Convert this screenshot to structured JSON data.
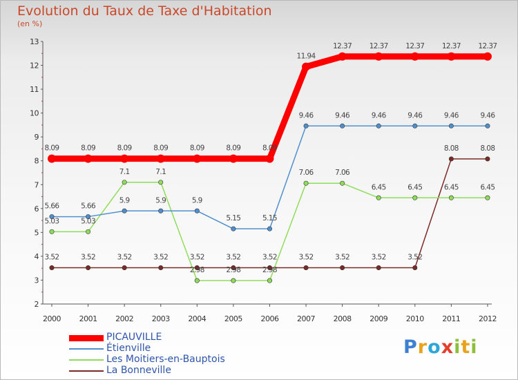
{
  "title": "Evolution du Taux de Taxe d'Habitation",
  "subtitle": "(en %)",
  "logo": {
    "letters": [
      {
        "ch": "P",
        "color": "#3d7fd1"
      },
      {
        "ch": "r",
        "color": "#e8a21b"
      },
      {
        "ch": "o",
        "color": "#2ea6d8"
      },
      {
        "ch": "x",
        "color": "#e23f2c"
      },
      {
        "ch": "i",
        "color": "#8dbf3a"
      },
      {
        "ch": "t",
        "color": "#e8a21b"
      },
      {
        "ch": "i",
        "color": "#8dbf3a"
      }
    ]
  },
  "chart_data": {
    "type": "line",
    "title": "Evolution du Taux de Taxe d'Habitation",
    "ylabel": "(en %)",
    "ylim": [
      2,
      13
    ],
    "yticks": [
      "2",
      "3",
      "4",
      "5",
      "6",
      "7",
      "8",
      "9",
      "10",
      "11",
      "12",
      "13"
    ],
    "categories": [
      "2000",
      "2001",
      "2002",
      "2003",
      "2004",
      "2005",
      "2006",
      "2007",
      "2008",
      "2009",
      "2010",
      "2011",
      "2012"
    ],
    "grid": false,
    "legend_position": "bottom-left",
    "series": [
      {
        "name": "PICAUVILLE",
        "color": "#ff0000",
        "width": 9,
        "values": [
          8.09,
          8.09,
          8.09,
          8.09,
          8.09,
          8.09,
          8.09,
          11.94,
          12.37,
          12.37,
          12.37,
          12.37,
          12.37
        ],
        "labels": [
          "8.09",
          "8.09",
          "8.09",
          "8.09",
          "8.09",
          "8.09",
          "8.09",
          "11.94",
          "12.37",
          "12.37",
          "12.37",
          "12.37",
          "12.37"
        ]
      },
      {
        "name": "Étienville",
        "color": "#4f8fce",
        "width": 1.5,
        "values": [
          5.66,
          5.66,
          5.9,
          5.9,
          5.9,
          5.15,
          5.15,
          9.46,
          9.46,
          9.46,
          9.46,
          9.46,
          9.46
        ],
        "labels": [
          "5.66",
          "5.66",
          "5.9",
          "5.9",
          "5.9",
          "5.15",
          "5.15",
          "9.46",
          "9.46",
          "9.46",
          "9.46",
          "9.46",
          "9.46"
        ]
      },
      {
        "name": "Les Moitiers-en-Bauptois",
        "color": "#8fdc5b",
        "width": 1.5,
        "values": [
          5.03,
          5.03,
          7.1,
          7.1,
          2.98,
          2.98,
          2.98,
          7.06,
          7.06,
          6.45,
          6.45,
          6.45,
          6.45
        ],
        "labels": [
          "5.03",
          "5.03",
          "7.1",
          "7.1",
          "2.98",
          "2.98",
          "2.98",
          "7.06",
          "7.06",
          "6.45",
          "6.45",
          "6.45",
          "6.45"
        ]
      },
      {
        "name": "La Bonneville",
        "color": "#7a2a26",
        "width": 1.5,
        "values": [
          3.52,
          3.52,
          3.52,
          3.52,
          3.52,
          3.52,
          3.52,
          3.52,
          3.52,
          3.52,
          3.52,
          8.08,
          8.08
        ],
        "labels": [
          "3.52",
          "3.52",
          "3.52",
          "3.52",
          "3.52",
          "3.52",
          "3.52",
          "3.52",
          "3.52",
          "3.52",
          "3.52",
          "8.08",
          "8.08"
        ]
      }
    ]
  }
}
